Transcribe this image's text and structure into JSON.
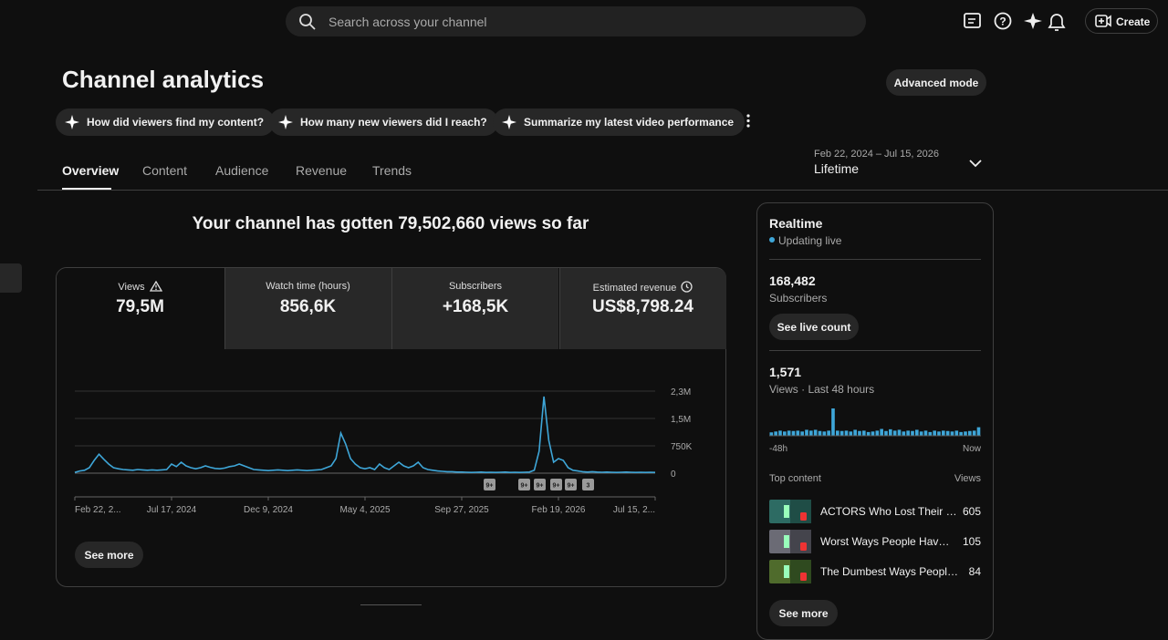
{
  "header": {
    "search_placeholder": "Search across your channel",
    "create": "Create"
  },
  "page": {
    "title": "Channel analytics",
    "advanced_mode": "Advanced mode",
    "chips": [
      "How did viewers find my content?",
      "How many new viewers did I reach?",
      "Summarize my latest video performance"
    ],
    "tabs": [
      "Overview",
      "Content",
      "Audience",
      "Revenue",
      "Trends"
    ],
    "date_range": {
      "dates": "Feb 22, 2024 – Jul 15, 2026",
      "period": "Lifetime"
    }
  },
  "overview": {
    "headline": "Your channel has gotten 79,502,660 views so far",
    "metrics": [
      {
        "label": "Views",
        "value": "79,5M"
      },
      {
        "label": "Watch time (hours)",
        "value": "856,6K"
      },
      {
        "label": "Subscribers",
        "value": "+168,5K"
      },
      {
        "label": "Estimated revenue",
        "value": "US$8,798.24"
      }
    ],
    "chart": {
      "type": "line",
      "color": "#3ea6d8",
      "categories": [
        "Feb 22, 2...",
        null,
        null,
        null,
        null,
        null,
        null,
        null,
        null,
        null,
        null,
        null,
        null,
        null,
        null,
        null,
        null,
        null,
        null,
        null,
        "Jul 17, 2024",
        null,
        null,
        null,
        null,
        null,
        null,
        null,
        null,
        null,
        null,
        null,
        null,
        null,
        null,
        null,
        null,
        null,
        null,
        null,
        "Dec 9, 2024",
        null,
        null,
        null,
        null,
        null,
        null,
        null,
        null,
        null,
        null,
        null,
        null,
        null,
        null,
        null,
        null,
        null,
        null,
        null,
        "May 4, 2025",
        null,
        null,
        null,
        null,
        null,
        null,
        null,
        null,
        null,
        null,
        null,
        null,
        null,
        null,
        null,
        null,
        null,
        null,
        null,
        "Sep 27, 2025",
        null,
        null,
        null,
        null,
        null,
        null,
        null,
        null,
        null,
        null,
        null,
        null,
        null,
        null,
        null,
        null,
        null,
        null,
        null,
        "Feb 19, 2026",
        null,
        null,
        null,
        null,
        null,
        null,
        null,
        null,
        null,
        null,
        null,
        null,
        null,
        null,
        null,
        null,
        null,
        null,
        null,
        "Jul 15, 2..."
      ],
      "values": [
        20000,
        60000,
        80000,
        150000,
        350000,
        520000,
        380000,
        250000,
        150000,
        120000,
        100000,
        90000,
        80000,
        100000,
        90000,
        80000,
        90000,
        80000,
        90000,
        100000,
        250000,
        180000,
        300000,
        200000,
        150000,
        120000,
        150000,
        200000,
        160000,
        130000,
        120000,
        140000,
        180000,
        200000,
        250000,
        200000,
        150000,
        100000,
        90000,
        80000,
        70000,
        80000,
        90000,
        80000,
        70000,
        80000,
        90000,
        80000,
        70000,
        80000,
        90000,
        100000,
        150000,
        200000,
        400000,
        1100000,
        800000,
        400000,
        250000,
        150000,
        120000,
        150000,
        100000,
        250000,
        150000,
        100000,
        200000,
        300000,
        200000,
        150000,
        200000,
        300000,
        150000,
        100000,
        80000,
        60000,
        50000,
        40000,
        40000,
        30000,
        30000,
        25000,
        20000,
        25000,
        30000,
        20000,
        25000,
        20000,
        25000,
        30000,
        20000,
        25000,
        20000,
        25000,
        30000,
        80000,
        600000,
        2100000,
        900000,
        300000,
        400000,
        350000,
        150000,
        80000,
        60000,
        40000,
        30000,
        40000,
        30000,
        25000,
        30000,
        25000,
        20000,
        25000,
        30000,
        25000,
        20000,
        25000,
        20000,
        25000,
        20000
      ],
      "ylim": [
        0,
        2250000
      ],
      "yticks": [
        0,
        {
          "value": 750000,
          "label": "750K"
        },
        {
          "value": 1500000,
          "label": "1,5M"
        },
        {
          "value": 2250000,
          "label": "2,3M"
        }
      ],
      "grid": true,
      "annotations": [
        "9+",
        "9+",
        "9+",
        "9+",
        "9+",
        "3"
      ]
    },
    "see_more": "See more"
  },
  "realtime": {
    "title": "Realtime",
    "status": "Updating live",
    "subscribers": {
      "value": "168,482",
      "label": "Subscribers"
    },
    "see_live_count": "See live count",
    "views": {
      "value": "1,571",
      "label": "Views · Last 48 hours"
    },
    "chart": {
      "type": "bar",
      "color": "#3ea6d8",
      "values": [
        20,
        25,
        30,
        25,
        30,
        28,
        30,
        25,
        35,
        30,
        35,
        28,
        25,
        30,
        160,
        30,
        28,
        30,
        25,
        35,
        28,
        30,
        22,
        25,
        30,
        40,
        28,
        38,
        30,
        35,
        25,
        30,
        28,
        35,
        25,
        30,
        22,
        30,
        25,
        30,
        28,
        25,
        30,
        22,
        25,
        28,
        30,
        50
      ],
      "x_start": "-48h",
      "x_end": "Now"
    },
    "top_content": {
      "title": "Top content",
      "column": "Views",
      "rows": [
        {
          "title": "ACTORS Who Lost Their …",
          "views": 605
        },
        {
          "title": "Worst Ways People Hav…",
          "views": 105
        },
        {
          "title": "The Dumbest Ways Peopl…",
          "views": 84
        }
      ]
    },
    "see_more": "See more"
  }
}
